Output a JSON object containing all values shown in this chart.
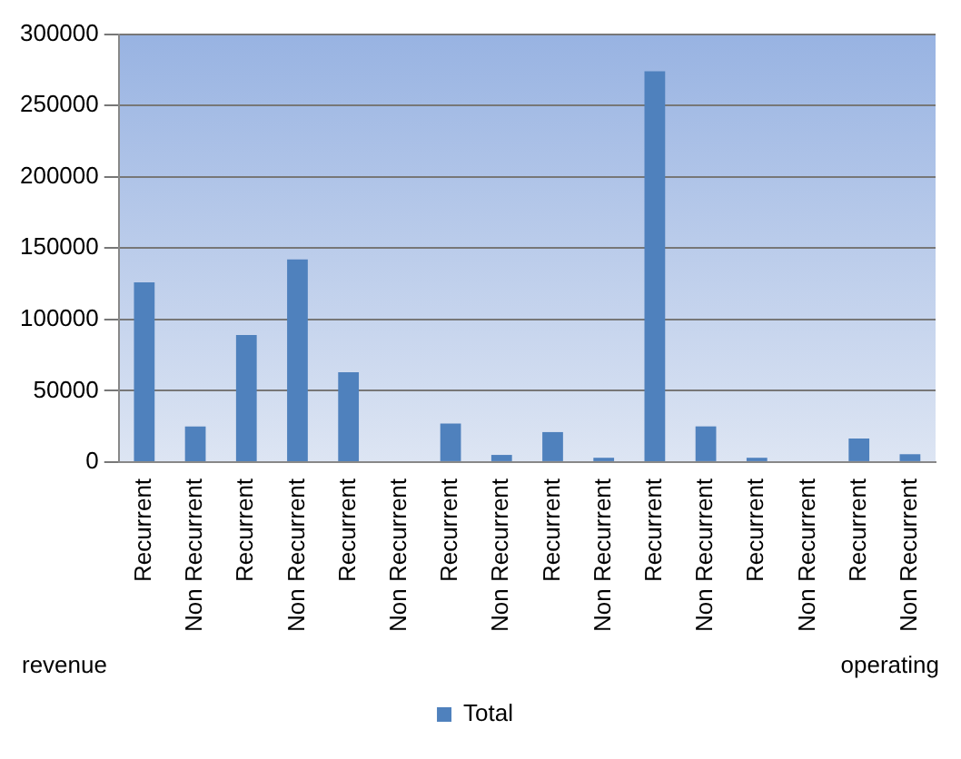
{
  "chart_data": {
    "type": "bar",
    "categories": [
      "Recurrent",
      "Non Recurrent",
      "Recurrent",
      "Non Recurrent",
      "Recurrent",
      "Non Recurrent",
      "Recurrent",
      "Non Recurrent",
      "Recurrent",
      "Non Recurrent",
      "Recurrent",
      "Non Recurrent",
      "Recurrent",
      "Non Recurrent",
      "Recurrent",
      "Non Recurrent"
    ],
    "series": [
      {
        "name": "Total",
        "color": "#4f81bd",
        "values": [
          126000,
          25000,
          89000,
          142000,
          63000,
          0,
          27000,
          5000,
          21000,
          3000,
          274000,
          25000,
          3000,
          0,
          16500,
          5500
        ]
      }
    ],
    "ylim": [
      0,
      300000
    ],
    "yticks": [
      0,
      50000,
      100000,
      150000,
      200000,
      250000,
      300000
    ],
    "grid": "y",
    "legend": "bottom",
    "annotations": [
      "revenue",
      "operating"
    ]
  }
}
